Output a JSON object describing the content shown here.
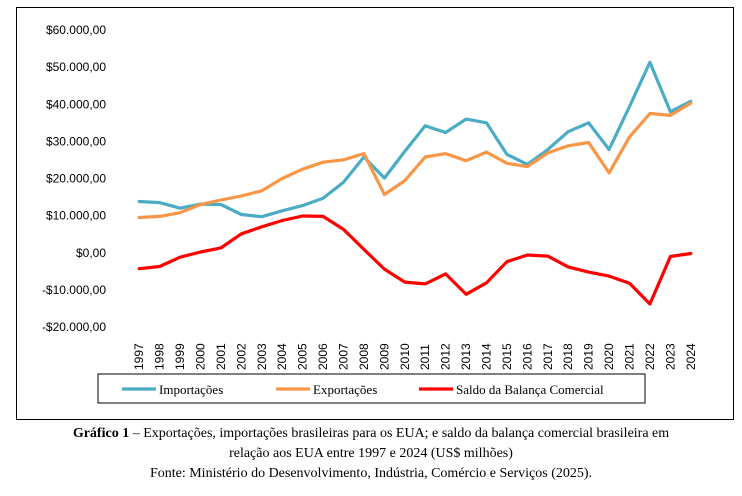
{
  "chart_data": {
    "type": "line",
    "title": "",
    "xlabel": "",
    "ylabel": "",
    "x": [
      "1997",
      "1998",
      "1999",
      "2000",
      "2001",
      "2002",
      "2003",
      "2004",
      "2005",
      "2006",
      "2007",
      "2008",
      "2009",
      "2010",
      "2011",
      "2012",
      "2013",
      "2014",
      "2015",
      "2016",
      "2017",
      "2018",
      "2019",
      "2020",
      "2021",
      "2022",
      "2023",
      "2024"
    ],
    "ylim": [
      -20000,
      60000
    ],
    "yticks": [
      60000,
      50000,
      40000,
      30000,
      20000,
      10000,
      0,
      -10000,
      -20000
    ],
    "ytick_labels": [
      "$60.000,00",
      "$50.000,00",
      "$40.000,00",
      "$30.000,00",
      "$20.000,00",
      "$10.000,00",
      "$0,00",
      "-$10.000,00",
      "-$20.000,00"
    ],
    "grid": false,
    "legend": "bottom",
    "series": [
      {
        "name": "Importações",
        "color": "#4BACC6",
        "values": [
          13800,
          13500,
          12000,
          13100,
          13000,
          10300,
          9700,
          11300,
          12700,
          14700,
          19000,
          25800,
          20100,
          27300,
          34200,
          32400,
          36000,
          35000,
          26500,
          23800,
          27800,
          32600,
          35000,
          27800,
          39400,
          51300,
          38000,
          40800
        ]
      },
      {
        "name": "Exportações",
        "color": "#F79646",
        "values": [
          9500,
          9800,
          10800,
          13000,
          14200,
          15300,
          16700,
          20000,
          22500,
          24400,
          25000,
          26700,
          15700,
          19400,
          25800,
          26700,
          24800,
          27100,
          24100,
          23200,
          26900,
          28800,
          29700,
          21500,
          31200,
          37500,
          37000,
          40300
        ]
      },
      {
        "name": "Saldo da Balança Comercial",
        "color": "#FF0000",
        "values": [
          -4300,
          -3700,
          -1200,
          200,
          1300,
          5100,
          7000,
          8700,
          9900,
          9800,
          6300,
          900,
          -4400,
          -7900,
          -8400,
          -5700,
          -11200,
          -8100,
          -2400,
          -600,
          -900,
          -3800,
          -5200,
          -6300,
          -8200,
          -13800,
          -1000,
          -200
        ]
      }
    ]
  },
  "caption": {
    "label": "Gráfico 1",
    "line1": " – Exportações, importações brasileiras para os EUA; e saldo da balança comercial brasileira em",
    "line2": "relação aos EUA entre 1997 e 2024 (US$ milhões)",
    "line3": "Fonte: Ministério do Desenvolvimento, Indústria, Comércio e Serviços (2025)."
  }
}
